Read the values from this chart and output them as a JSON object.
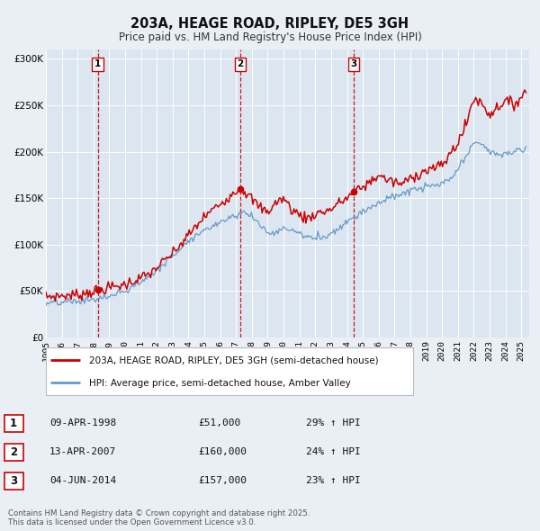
{
  "title": "203A, HEAGE ROAD, RIPLEY, DE5 3GH",
  "subtitle": "Price paid vs. HM Land Registry's House Price Index (HPI)",
  "bg_color": "#eaeff5",
  "plot_bg_color": "#dce6f0",
  "grid_color": "#ffffff",
  "legend_label_red": "203A, HEAGE ROAD, RIPLEY, DE5 3GH (semi-detached house)",
  "legend_label_blue": "HPI: Average price, semi-detached house, Amber Valley",
  "footer": "Contains HM Land Registry data © Crown copyright and database right 2025.\nThis data is licensed under the Open Government Licence v3.0.",
  "sale_points": [
    {
      "num": 1,
      "date_x": 1998.27,
      "price": 51000,
      "label": "1",
      "date_str": "09-APR-1998",
      "price_str": "£51,000",
      "hpi_str": "29% ↑ HPI"
    },
    {
      "num": 2,
      "date_x": 2007.28,
      "price": 160000,
      "label": "2",
      "date_str": "13-APR-2007",
      "price_str": "£160,000",
      "hpi_str": "24% ↑ HPI"
    },
    {
      "num": 3,
      "date_x": 2014.42,
      "price": 157000,
      "label": "3",
      "date_str": "04-JUN-2014",
      "price_str": "£157,000",
      "hpi_str": "23% ↑ HPI"
    }
  ],
  "vline_color": "#cc0000",
  "marker_color": "#cc0000",
  "red_line_color": "#cc0000",
  "blue_line_color": "#6699cc",
  "ylim": [
    0,
    310000
  ],
  "xlim_start": 1995.0,
  "xlim_end": 2025.5,
  "yticks": [
    0,
    50000,
    100000,
    150000,
    200000,
    250000,
    300000
  ],
  "ytick_labels": [
    "£0",
    "£50K",
    "£100K",
    "£150K",
    "£200K",
    "£250K",
    "£300K"
  ],
  "xticks": [
    1995,
    1996,
    1997,
    1998,
    1999,
    2000,
    2001,
    2002,
    2003,
    2004,
    2005,
    2006,
    2007,
    2008,
    2009,
    2010,
    2011,
    2012,
    2013,
    2014,
    2015,
    2016,
    2017,
    2018,
    2019,
    2020,
    2021,
    2022,
    2023,
    2024,
    2025
  ]
}
